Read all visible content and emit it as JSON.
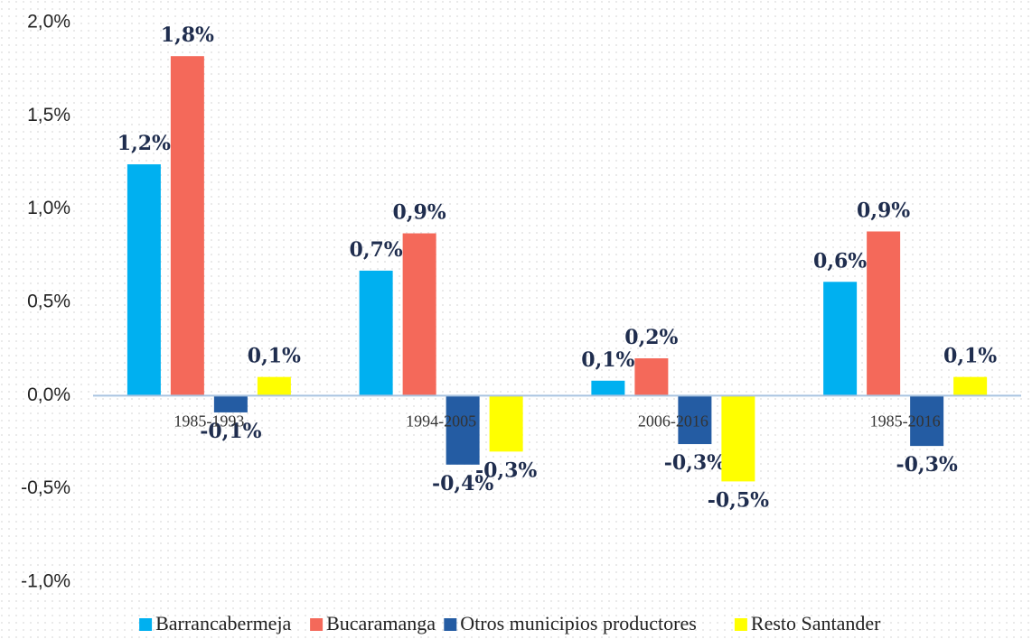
{
  "chart_data": {
    "type": "bar",
    "categories": [
      "1985-1993",
      "1994-2005",
      "2006-2016",
      "1985-2016"
    ],
    "series": [
      {
        "name": "Barrancabermeja",
        "color": "#00b0f0",
        "values": [
          1.24,
          0.67,
          0.08,
          0.61
        ],
        "value_labels": [
          "1,2%",
          "0,7%",
          "0,1%",
          "0,6%"
        ]
      },
      {
        "name": "Bucaramanga",
        "color": "#f4695a",
        "values": [
          1.82,
          0.87,
          0.2,
          0.88
        ],
        "value_labels": [
          "1,8%",
          "0,9%",
          "0,2%",
          "0,9%"
        ]
      },
      {
        "name": "Otros municipios productores",
        "color": "#245ca3",
        "values": [
          -0.09,
          -0.37,
          -0.26,
          -0.27
        ],
        "value_labels": [
          "-0,1%",
          "-0,4%",
          "-0,3%",
          "-0,3%"
        ]
      },
      {
        "name": "Resto Santander",
        "color": "#ffff00",
        "values": [
          0.1,
          -0.3,
          -0.46,
          0.1
        ],
        "value_labels": [
          "0,1%",
          "-0,3%",
          "-0,5%",
          "0,1%"
        ]
      }
    ],
    "ylim": [
      -1,
      2
    ],
    "yticks": [
      {
        "value": -1,
        "label": "-1,0%"
      },
      {
        "value": -0.5,
        "label": "-0,5%"
      },
      {
        "value": 0,
        "label": "0,0%"
      },
      {
        "value": 0.5,
        "label": "0,5%"
      },
      {
        "value": 1,
        "label": "1,0%"
      },
      {
        "value": 1.5,
        "label": "1,5%"
      },
      {
        "value": 2,
        "label": "2,0%"
      }
    ],
    "legend": "bottom"
  }
}
